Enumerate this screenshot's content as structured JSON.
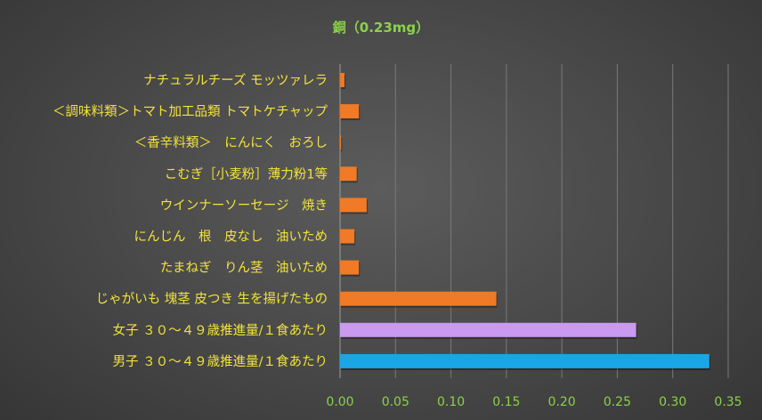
{
  "chart_data": {
    "type": "bar",
    "orientation": "horizontal",
    "title": "銅（0.23mg）",
    "categories": [
      "ナチュラルチーズ モッツァレラ",
      "＜調味料類＞トマト加工品類 トマトケチャップ",
      "＜香辛料類＞　にんにく　おろし",
      "こむぎ［小麦粉］薄力粉1等",
      "ウインナーソーセージ　焼き",
      "にんじん　根　皮なし　油いため",
      "たまねぎ　りん茎　油いため",
      "じゃがいも 塊茎 皮つき 生を揚げたもの",
      "女子 ３０～４９歳推進量/１食あたり",
      "男子 ３０～４９歳推進量/１食あたり"
    ],
    "values": [
      0.004,
      0.017,
      0.001,
      0.015,
      0.024,
      0.013,
      0.017,
      0.141,
      0.267,
      0.333
    ],
    "bar_colors": [
      "#f07a26",
      "#f07a26",
      "#f07a26",
      "#f07a26",
      "#f07a26",
      "#f07a26",
      "#f07a26",
      "#f07a26",
      "#c99af0",
      "#1aa6e6"
    ],
    "xlim": [
      0,
      0.35
    ],
    "x_ticks": [
      "0.00",
      "0.05",
      "0.10",
      "0.15",
      "0.20",
      "0.25",
      "0.30",
      "0.35"
    ],
    "xlabel": "",
    "ylabel": "",
    "grid": true,
    "legend": "none"
  }
}
